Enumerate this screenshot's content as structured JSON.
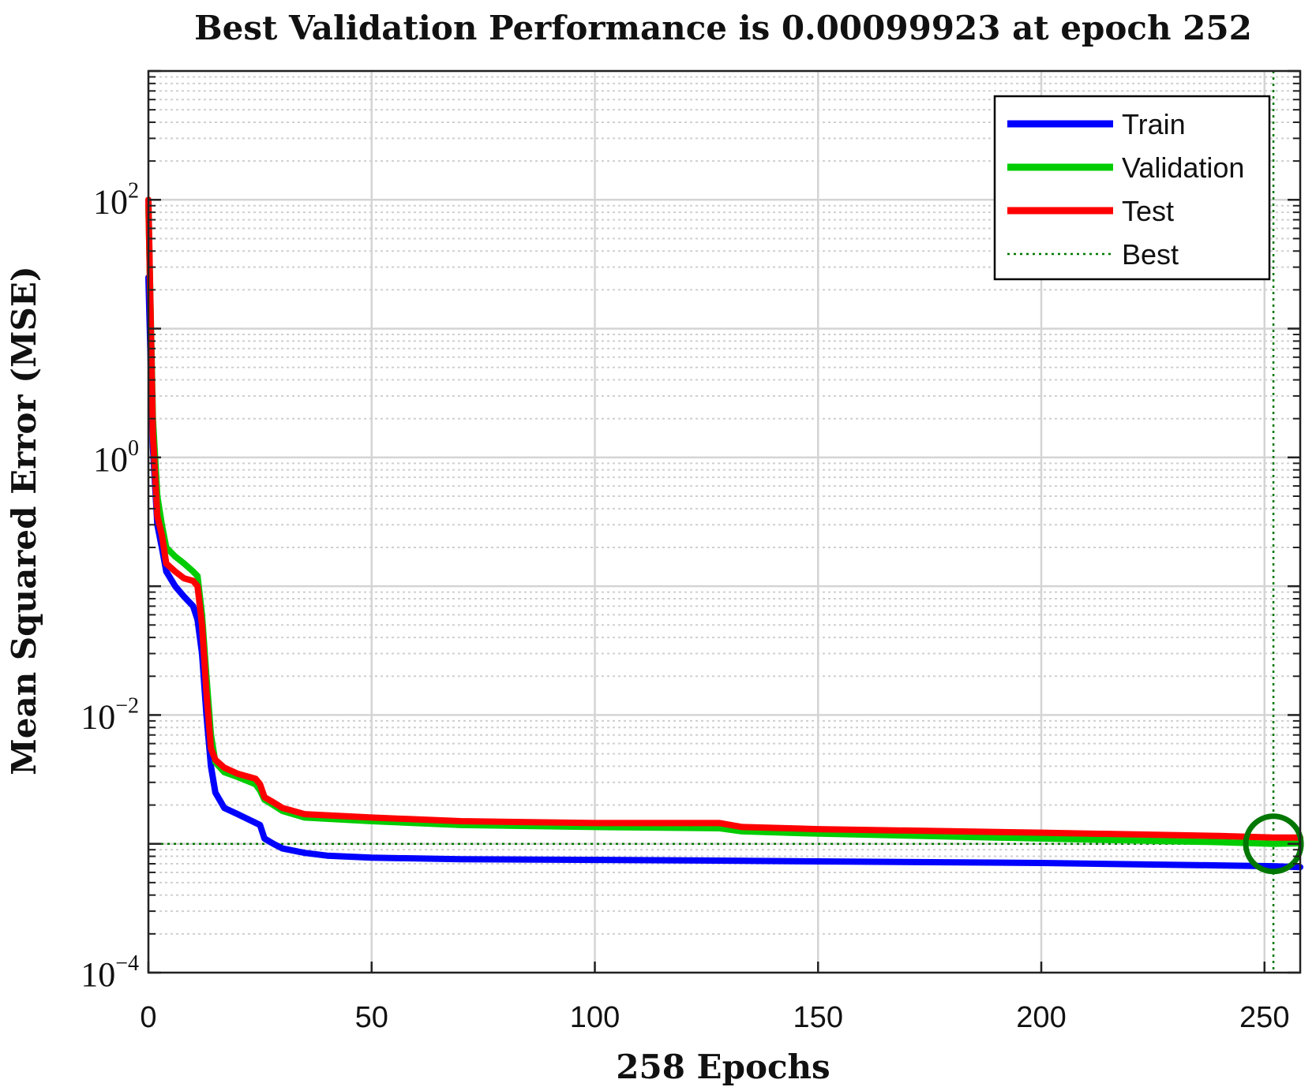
{
  "chart_data": {
    "type": "line",
    "title": "Best Validation Performance is 0.00099923 at epoch 252",
    "xlabel": "258 Epochs",
    "ylabel": "Mean Squared Error  (MSE)",
    "xlim": [
      0,
      258
    ],
    "ylim_log10": [
      -4,
      3
    ],
    "yscale": "log",
    "grid": true,
    "legend_position": "top-right",
    "x_ticks": [
      0,
      50,
      100,
      150,
      200,
      250
    ],
    "y_ticks": [
      {
        "exp": 2,
        "base": "10",
        "sup": "2"
      },
      {
        "exp": 0,
        "base": "10",
        "sup": "0"
      },
      {
        "exp": -2,
        "base": "10",
        "sup": "−2"
      },
      {
        "exp": -4,
        "base": "10",
        "sup": "−4"
      }
    ],
    "series": [
      {
        "name": "Train",
        "color": "#0000ff",
        "x": [
          0,
          1,
          2,
          3,
          4,
          6,
          8,
          10,
          11,
          12,
          13,
          14,
          15,
          17,
          20,
          25,
          26,
          28,
          30,
          35,
          40,
          50,
          70,
          100,
          130,
          150,
          200,
          240,
          252,
          258
        ],
        "y": [
          25,
          1.2,
          0.3,
          0.2,
          0.13,
          0.1,
          0.083,
          0.07,
          0.055,
          0.03,
          0.01,
          0.004,
          0.0025,
          0.0019,
          0.0017,
          0.0014,
          0.0011,
          0.001,
          0.00092,
          0.00085,
          0.00081,
          0.00078,
          0.00076,
          0.00075,
          0.00074,
          0.00073,
          0.00071,
          0.00068,
          0.00067,
          0.00066
        ]
      },
      {
        "name": "Validation",
        "color": "#00cc00",
        "x": [
          0,
          1,
          2,
          3,
          4,
          6,
          8,
          10,
          11,
          12,
          13,
          14,
          15,
          17,
          20,
          24,
          25,
          26,
          28,
          30,
          35,
          50,
          70,
          100,
          128,
          133,
          150,
          200,
          240,
          252,
          258
        ],
        "y": [
          90,
          2.0,
          0.5,
          0.3,
          0.2,
          0.17,
          0.15,
          0.13,
          0.12,
          0.06,
          0.02,
          0.007,
          0.0043,
          0.0036,
          0.0033,
          0.0029,
          0.0026,
          0.0022,
          0.002,
          0.0018,
          0.0016,
          0.0015,
          0.0014,
          0.00135,
          0.00132,
          0.00125,
          0.0012,
          0.0011,
          0.00103,
          0.00099923,
          0.00101
        ]
      },
      {
        "name": "Test",
        "color": "#ff0000",
        "x": [
          0,
          1,
          2,
          3,
          4,
          6,
          8,
          10,
          11,
          12,
          13,
          14,
          15,
          17,
          20,
          24,
          25,
          26,
          28,
          30,
          35,
          50,
          70,
          100,
          128,
          133,
          150,
          200,
          240,
          252,
          258
        ],
        "y": [
          100,
          1.5,
          0.35,
          0.25,
          0.15,
          0.13,
          0.115,
          0.11,
          0.1,
          0.05,
          0.015,
          0.0055,
          0.0045,
          0.0039,
          0.0035,
          0.0032,
          0.0029,
          0.0023,
          0.0021,
          0.0019,
          0.0017,
          0.0016,
          0.0015,
          0.00145,
          0.00145,
          0.00135,
          0.0013,
          0.00122,
          0.00115,
          0.00112,
          0.00112
        ]
      }
    ],
    "best": {
      "name": "Best",
      "color": "#007700",
      "epoch": 252,
      "value": 0.00099923
    }
  }
}
